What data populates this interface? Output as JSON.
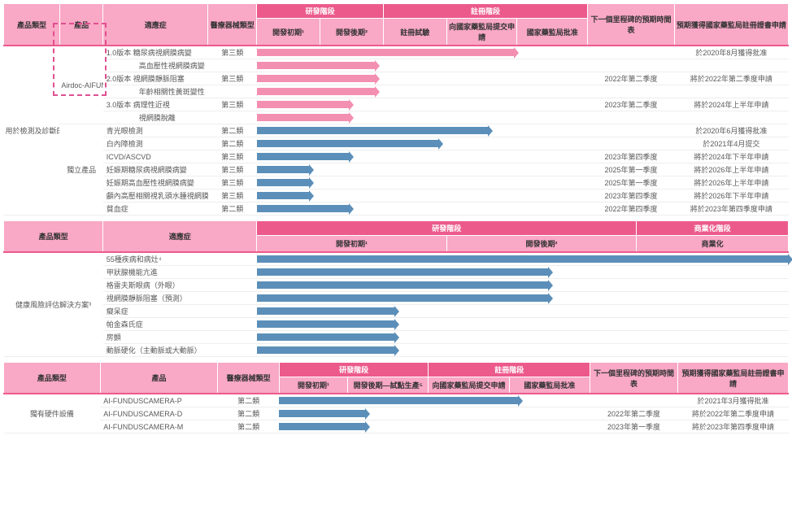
{
  "colors": {
    "hdr_light": "#f9a8c5",
    "hdr_dark": "#ec5a8c",
    "pink": "#f38fb0",
    "blue": "#5b8fb9",
    "border": "#eee",
    "text": "#5a5a5a",
    "dash": "#e05090"
  },
  "section1": {
    "headers": {
      "product_type": "產品類型",
      "product": "產品",
      "indication": "適應症",
      "device_class": "醫療器械類型",
      "rd_stage": "研發階段",
      "dev_early": "開發初期¹",
      "dev_late": "開發後期²",
      "reg_stage": "註冊階段",
      "reg_trial": "註冊試驗",
      "reg_submit": "向國家藥監局提交申請",
      "reg_approve": "國家藥監局批准",
      "next_milestone": "下一個里程碑的預期時間表",
      "expected_reg": "預期獲得國家藥監局註冊證書申請"
    },
    "cat1": "用於檢測及診斷的SaMD",
    "cat2": "獨立產品",
    "prod": "Airdoc-AIFUNDUS",
    "versions": [
      "1.0版本",
      "2.0版本",
      "3.0版本"
    ],
    "rows": [
      {
        "ind": "糖尿病視網膜病變",
        "cls": "第三類",
        "color": "pink",
        "len": 78,
        "ms": "",
        "reg": "於2020年8月獲得批准"
      },
      {
        "ind": "高血壓性視網膜病變",
        "cls": "",
        "color": "pink",
        "len": 36,
        "ms": "",
        "reg": ""
      },
      {
        "ind": "視網膜靜脈阻塞",
        "cls": "第三類",
        "color": "pink",
        "len": 36,
        "ms": "2022年第二季度",
        "reg": "將於2022年第二季度申請"
      },
      {
        "ind": "年齡相關性黃斑變性",
        "cls": "",
        "color": "pink",
        "len": 36,
        "ms": "",
        "reg": ""
      },
      {
        "ind": "病理性近視",
        "cls": "第三類",
        "color": "pink",
        "len": 28,
        "ms": "2023年第二季度",
        "reg": "將於2024年上半年申請"
      },
      {
        "ind": "視網膜脫離",
        "cls": "",
        "color": "pink",
        "len": 28,
        "ms": "",
        "reg": ""
      },
      {
        "ind": "青光眼檢測",
        "cls": "第二類",
        "color": "blue",
        "len": 70,
        "ms": "",
        "reg": "於2020年6月獲得批准"
      },
      {
        "ind": "白內障檢測",
        "cls": "第二類",
        "color": "blue",
        "len": 55,
        "ms": "",
        "reg": "於2021年4月提交"
      },
      {
        "ind": "ICVD/ASCVD",
        "cls": "第三類",
        "color": "blue",
        "len": 28,
        "ms": "2023年第四季度",
        "reg": "將於2024年下半年申請"
      },
      {
        "ind": "妊娠期糖尿病視網膜病變",
        "cls": "第三類",
        "color": "blue",
        "len": 16,
        "ms": "2025年第一季度",
        "reg": "將於2026年上半年申請"
      },
      {
        "ind": "妊娠期高血壓性視網膜病變",
        "cls": "第三類",
        "color": "blue",
        "len": 16,
        "ms": "2025年第一季度",
        "reg": "將於2026年上半年申請"
      },
      {
        "ind": "顱內高壓相關視乳頭水腫視網膜病變",
        "cls": "第三類",
        "color": "blue",
        "len": 16,
        "ms": "2023年第四季度",
        "reg": "將於2026年下半年申請"
      },
      {
        "ind": "貧血症",
        "cls": "第二類",
        "color": "blue",
        "len": 28,
        "ms": "2022年第四季度",
        "reg": "將於2023年第四季度申請"
      }
    ]
  },
  "section2": {
    "headers": {
      "product_type": "產品類型",
      "indication": "適應症",
      "rd_stage": "研發階段",
      "commercial_stage": "商業化階段",
      "dev_early": "開發初期¹",
      "dev_late": "開發後期²",
      "commercial": "商業化"
    },
    "cat": "健康風險評估解決方案³",
    "rows": [
      {
        "ind": "55種疾病和病灶⁴",
        "len": 100
      },
      {
        "ind": "甲狀腺機能亢進",
        "len": 55
      },
      {
        "ind": "格雷夫斯眼病（外眼）",
        "len": 55
      },
      {
        "ind": "視網膜靜脈阻塞（預測）",
        "len": 55
      },
      {
        "ind": "癡呆症",
        "len": 26
      },
      {
        "ind": "帕金森氏症",
        "len": 26
      },
      {
        "ind": "房顫",
        "len": 26
      },
      {
        "ind": "動脈硬化（主動脈或大動脈）",
        "len": 26
      }
    ]
  },
  "section3": {
    "headers": {
      "product_type": "產品類型",
      "product": "產品",
      "device_class": "醫療器械類型",
      "rd_stage": "研發階段",
      "dev_early": "開發初期¹",
      "dev_late": "開發後期—試點生產⁵",
      "reg_stage": "註冊階段",
      "reg_submit": "向國家藥監局提交申請",
      "reg_approve": "國家藥監局批准",
      "next_milestone": "下一個里程碑的預期時間表",
      "expected_reg": "預期獲得國家藥監局註冊證書申請"
    },
    "cat": "獨有硬件設備",
    "rows": [
      {
        "prod": "AI-FUNDUSCAMERA-P",
        "cls": "第二類",
        "len": 77,
        "ms": "",
        "reg": "於2021年3月獲得批准"
      },
      {
        "prod": "AI-FUNDUSCAMERA-D",
        "cls": "第二類",
        "len": 28,
        "ms": "2022年第二季度",
        "reg": "將於2022年第二季度申請"
      },
      {
        "prod": "AI-FUNDUSCAMERA-M",
        "cls": "第二類",
        "len": 28,
        "ms": "2023年第一季度",
        "reg": "將於2023年第四季度申請"
      }
    ]
  }
}
